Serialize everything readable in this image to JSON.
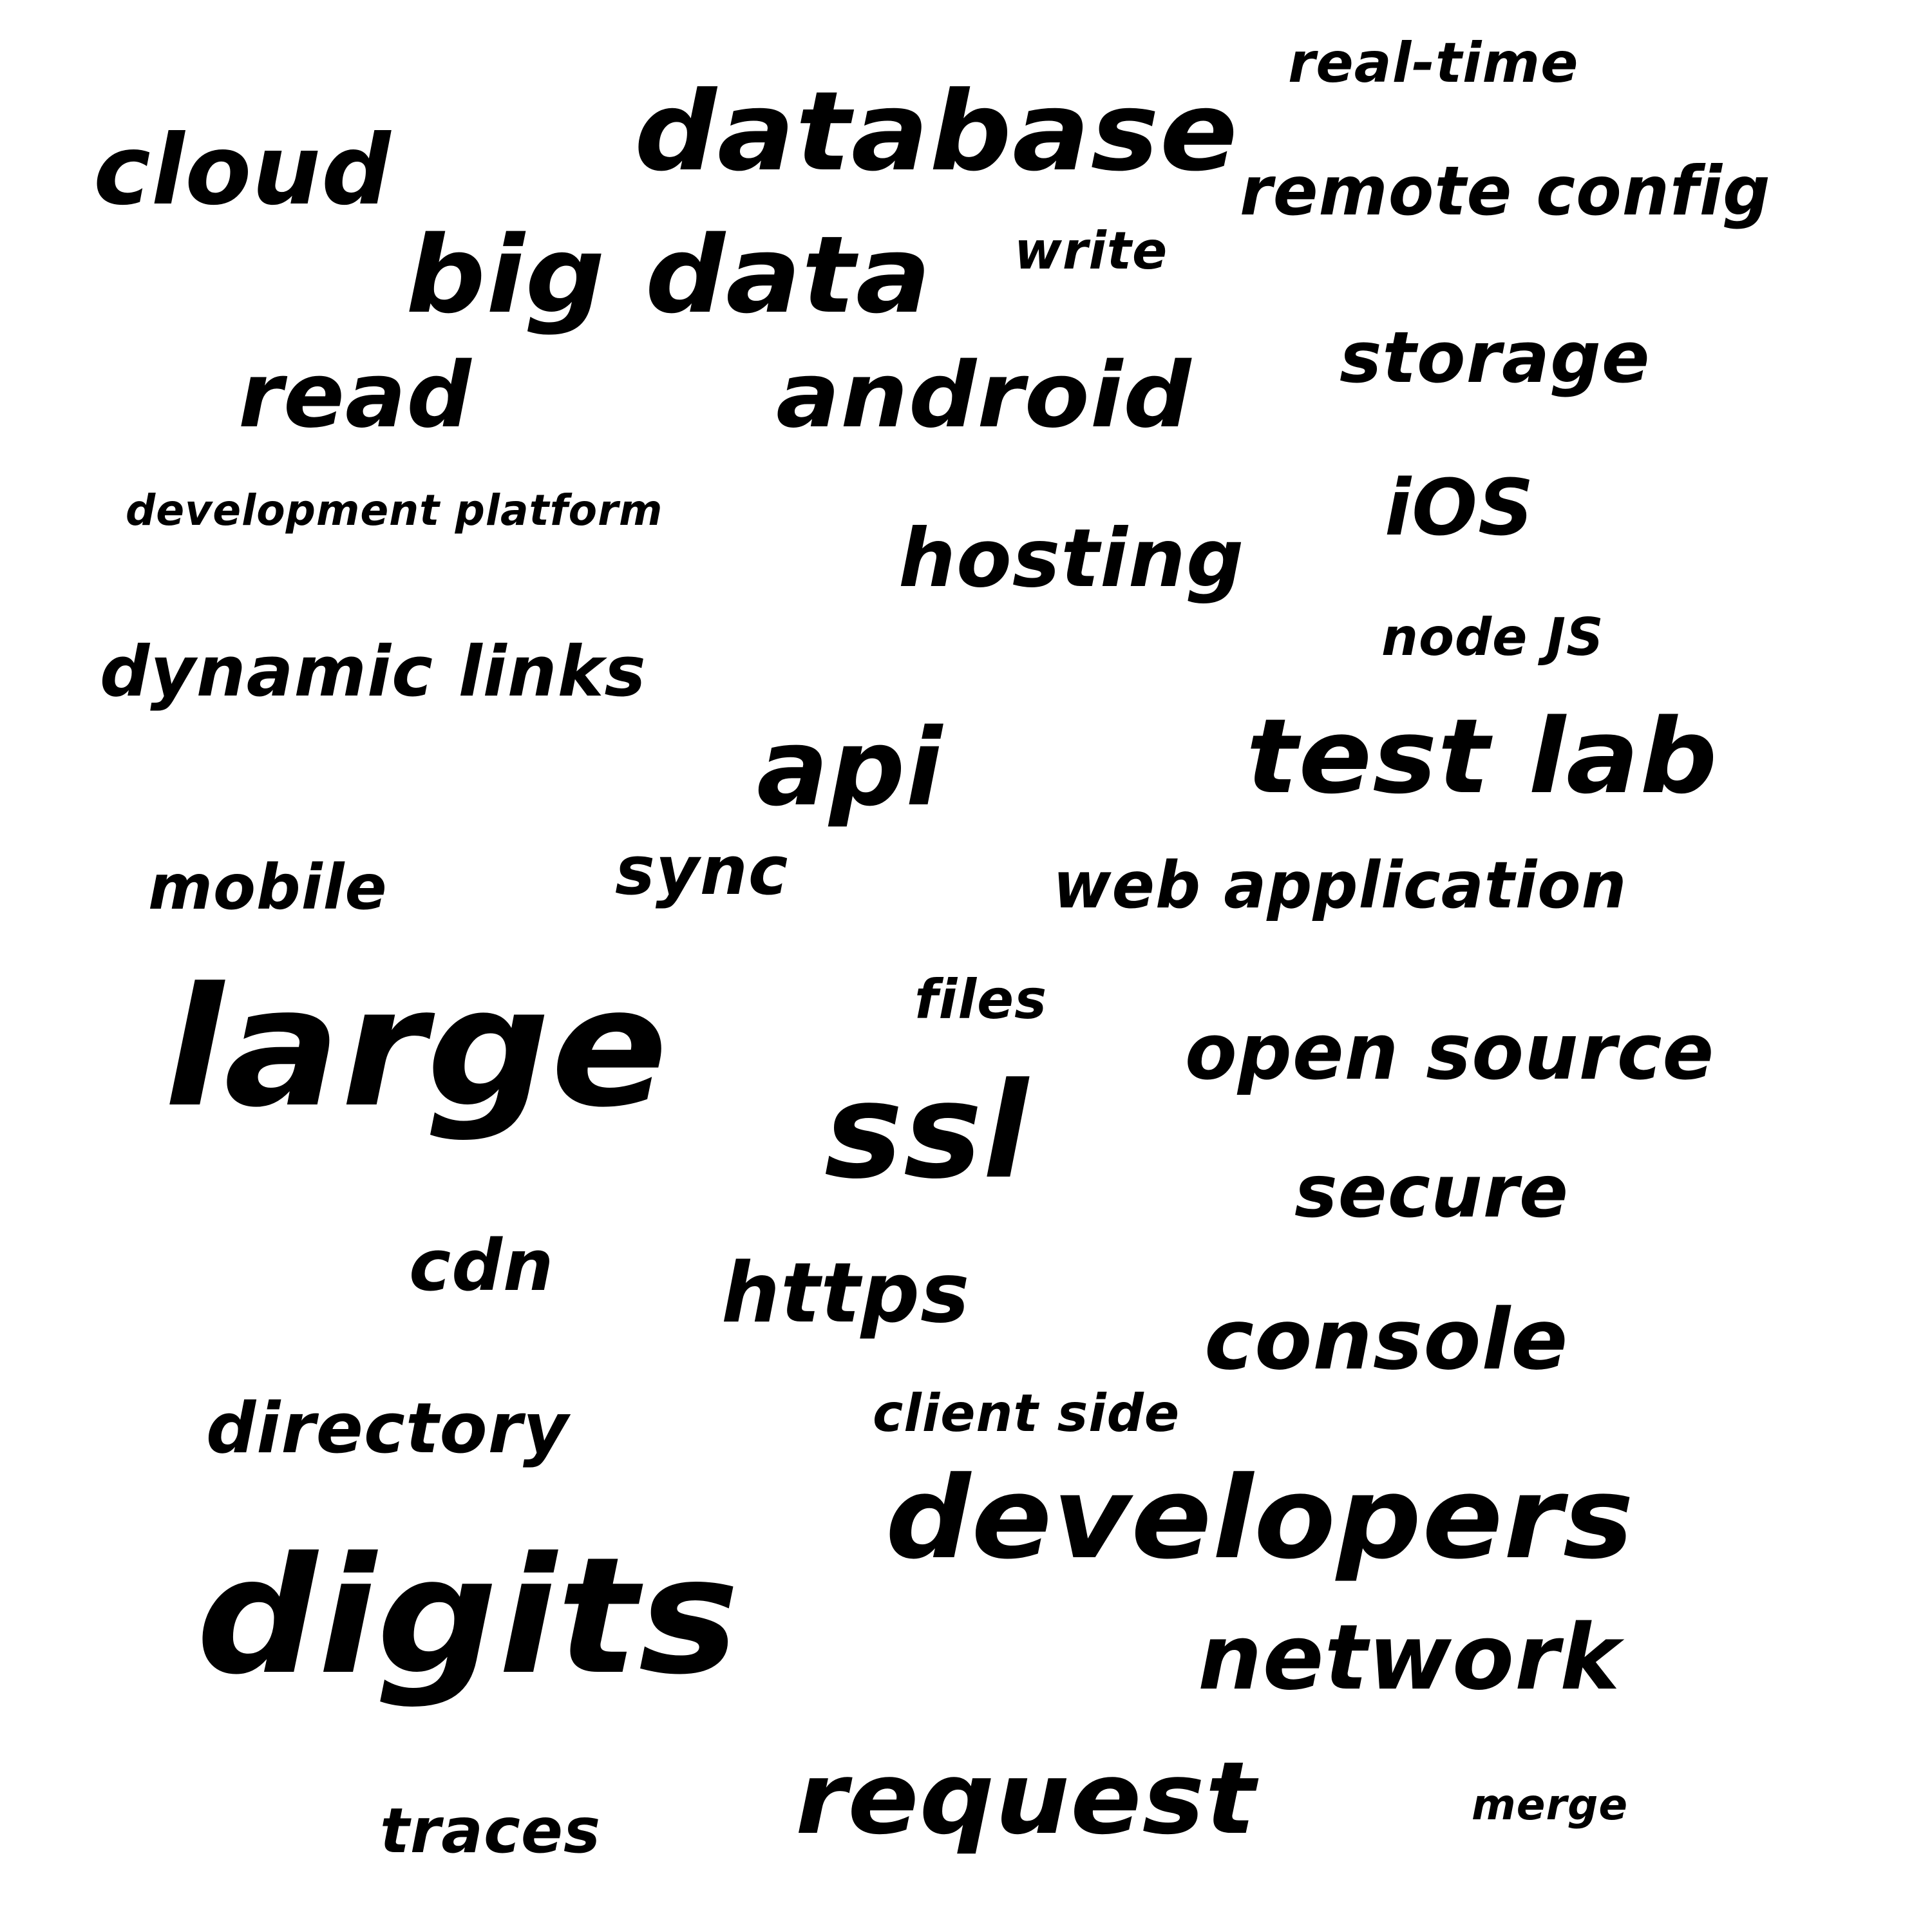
{
  "cloud": {
    "words": [
      "real-time",
      "database",
      "cloud",
      "remote config",
      "big data",
      "write",
      "storage",
      "read",
      "android",
      "development platform",
      "hosting",
      "iOS",
      "node JS",
      "dynamic links",
      "api",
      "test lab",
      "mobile",
      "sync",
      "web application",
      "large",
      "files",
      "open source",
      "ssl",
      "secure",
      "cdn",
      "https",
      "console",
      "directory",
      "client side",
      "developers",
      "digits",
      "network",
      "request",
      "merge",
      "traces"
    ]
  },
  "colors": {
    "background": "#ffffff",
    "text": "#000000"
  }
}
